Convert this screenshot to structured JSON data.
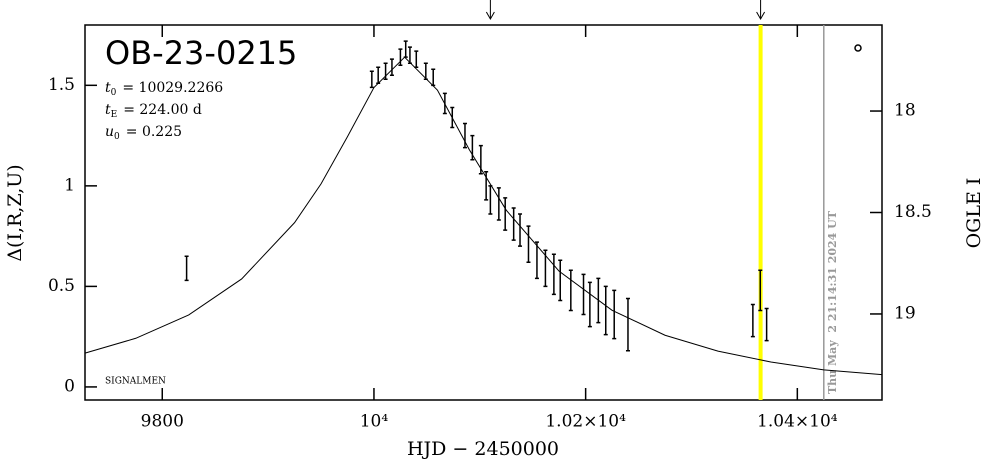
{
  "chart_data": {
    "type": "errorbar",
    "title": "OB-23-0215",
    "parameters": [
      {
        "symbol": "t",
        "sub": "0",
        "value": "= 10029.2266"
      },
      {
        "symbol": "t",
        "sub": "E",
        "value": "= 224.00 d"
      },
      {
        "symbol": "u",
        "sub": "0",
        "value": "= 0.225"
      }
    ],
    "note": "SIGNALMEN",
    "timestamp": "Thu May  2 21:14:31 2024 UT",
    "xlabel": "HJD − 2450000",
    "ylabel": "Δ(I,R,Z,U)",
    "y2label": "OGLE I",
    "xlim": [
      9727,
      10480
    ],
    "ylim": [
      -0.065,
      1.8
    ],
    "y2lim": [
      19.424,
      17.576
    ],
    "xticks": [
      9800,
      {
        "value": 10000,
        "label": "10⁴"
      },
      {
        "value": 10200,
        "label": "1.02×10⁴"
      },
      {
        "value": 10400,
        "label": "1.04×10⁴"
      }
    ],
    "yticks": [
      0,
      0.5,
      1,
      1.5
    ],
    "y2ticks": [
      18,
      18.5,
      19
    ],
    "series": [
      {
        "color": "#000000",
        "x": [
          9823,
          9998,
          10004,
          10011,
          10017,
          10025,
          10030,
          10034,
          10040,
          10049,
          10056,
          10067,
          10074,
          10086,
          10093,
          10101,
          10106,
          10110,
          10118,
          10124,
          10132,
          10138,
          10146,
          10154,
          10162,
          10170,
          10176,
          10186,
          10198,
          10204,
          10212,
          10219,
          10227,
          10240,
          10358,
          10365,
          10371
        ],
        "values": [
          0.59,
          1.53,
          1.55,
          1.57,
          1.59,
          1.64,
          1.68,
          1.65,
          1.63,
          1.57,
          1.54,
          1.41,
          1.34,
          1.25,
          1.19,
          1.13,
          1.0,
          0.93,
          0.91,
          0.86,
          0.81,
          0.78,
          0.71,
          0.63,
          0.59,
          0.56,
          0.53,
          0.48,
          0.46,
          0.41,
          0.43,
          0.38,
          0.36,
          0.31,
          0.33,
          0.48,
          0.31
        ],
        "errors": [
          0.06,
          0.04,
          0.04,
          0.04,
          0.04,
          0.04,
          0.04,
          0.04,
          0.04,
          0.04,
          0.04,
          0.05,
          0.05,
          0.06,
          0.06,
          0.07,
          0.07,
          0.07,
          0.08,
          0.08,
          0.08,
          0.08,
          0.09,
          0.09,
          0.09,
          0.1,
          0.1,
          0.1,
          0.1,
          0.11,
          0.11,
          0.12,
          0.12,
          0.13,
          0.08,
          0.1,
          0.08
        ]
      }
    ],
    "model": {
      "color": "#000000",
      "x": [
        9727,
        9775,
        9825,
        9875,
        9925,
        9950,
        9975,
        10000,
        10029,
        10060,
        10090,
        10125,
        10175,
        10225,
        10275,
        10325,
        10375,
        10425,
        10480
      ],
      "values": [
        0.168,
        0.242,
        0.358,
        0.537,
        0.817,
        1.01,
        1.245,
        1.489,
        1.64,
        1.476,
        1.181,
        0.879,
        0.575,
        0.381,
        0.257,
        0.178,
        0.124,
        0.085,
        0.061
      ]
    },
    "vlines": [
      {
        "x": 10365.3,
        "color": "#ffff00"
      },
      {
        "x": 10425,
        "color": "#999999"
      }
    ],
    "arrows_x": [
      10110,
      10365.3
    ]
  }
}
